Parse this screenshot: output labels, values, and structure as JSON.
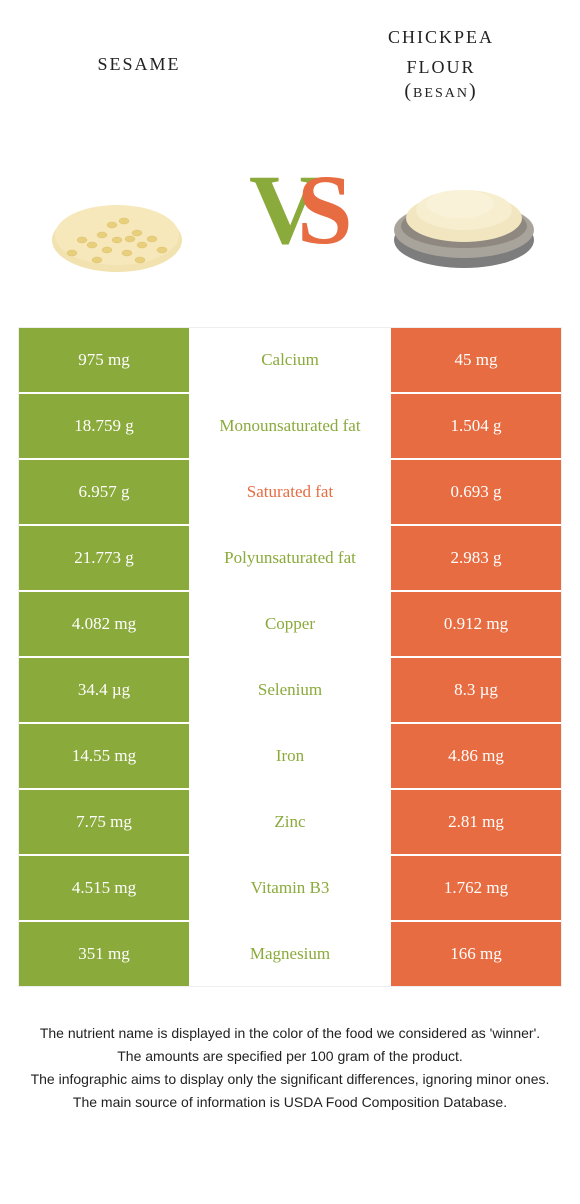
{
  "colors": {
    "green": "#8aaa3b",
    "orange": "#e76c41",
    "white": "#ffffff",
    "text": "#333333"
  },
  "header": {
    "left_title": "sesame",
    "right_title_line1": "chickpea",
    "right_title_line2": "flour",
    "right_subtitle": "(besan)"
  },
  "vs": {
    "v": "V",
    "s": "S"
  },
  "rows": [
    {
      "left": "975 mg",
      "mid": "Calcium",
      "right": "45 mg",
      "winner": "left"
    },
    {
      "left": "18.759 g",
      "mid": "Monounsaturated fat",
      "right": "1.504 g",
      "winner": "left"
    },
    {
      "left": "6.957 g",
      "mid": "Saturated fat",
      "right": "0.693 g",
      "winner": "right"
    },
    {
      "left": "21.773 g",
      "mid": "Polyunsaturated fat",
      "right": "2.983 g",
      "winner": "left"
    },
    {
      "left": "4.082 mg",
      "mid": "Copper",
      "right": "0.912 mg",
      "winner": "left"
    },
    {
      "left": "34.4 µg",
      "mid": "Selenium",
      "right": "8.3 µg",
      "winner": "left"
    },
    {
      "left": "14.55 mg",
      "mid": "Iron",
      "right": "4.86 mg",
      "winner": "left"
    },
    {
      "left": "7.75 mg",
      "mid": "Zinc",
      "right": "2.81 mg",
      "winner": "left"
    },
    {
      "left": "4.515 mg",
      "mid": "Vitamin B3",
      "right": "1.762 mg",
      "winner": "left"
    },
    {
      "left": "351 mg",
      "mid": "Magnesium",
      "right": "166 mg",
      "winner": "left"
    }
  ],
  "footnotes": {
    "line1": "The nutrient name is displayed in the color of the food we considered as 'winner'.",
    "line2": "The amounts are specified per 100 gram of the product.",
    "line3": "The infographic aims to display only the significant differences, ignoring minor ones.",
    "line4": "The main source of information is USDA Food Composition Database."
  }
}
